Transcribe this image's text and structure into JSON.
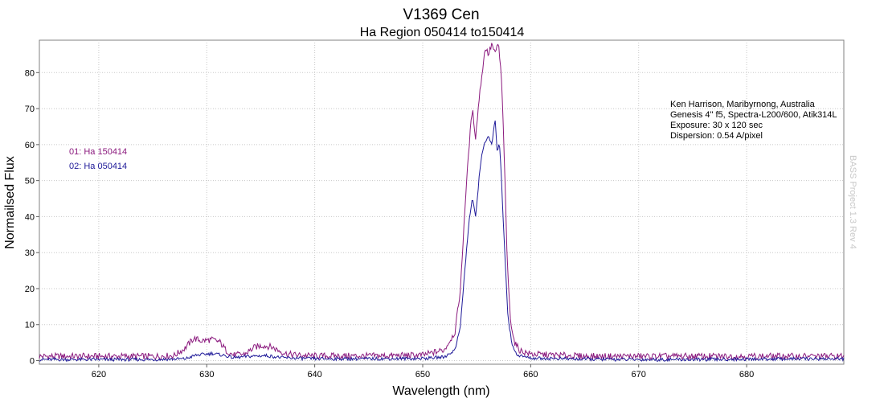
{
  "chart_data": {
    "type": "line",
    "title": "V1369 Cen",
    "subtitle": "Ha Region 050414 to150414",
    "xlabel": "Wavelength (nm)",
    "ylabel": "Normailsed Flux",
    "xlim": [
      614.5,
      689.0
    ],
    "ylim": [
      -1,
      89
    ],
    "xticks": [
      620,
      630,
      640,
      650,
      660,
      670,
      680
    ],
    "yticks": [
      0,
      10,
      20,
      30,
      40,
      50,
      60,
      70,
      80
    ],
    "grid": true,
    "legend_position": "left",
    "series": [
      {
        "name": "01: Ha 150414",
        "color": "#8b1a7e",
        "x": [
          614.5,
          620,
          625,
          627,
          628,
          628.8,
          629.5,
          630.5,
          631.2,
          631.8,
          632.5,
          633.5,
          634.5,
          635.2,
          636,
          636.8,
          637.5,
          638.5,
          640,
          645,
          650,
          652,
          653,
          653.5,
          653.9,
          654.3,
          654.6,
          654.9,
          655.2,
          655.5,
          655.8,
          656.1,
          656.4,
          656.7,
          657.0,
          657.3,
          657.5,
          657.8,
          658.1,
          658.5,
          659,
          660,
          665,
          670,
          675,
          680,
          685,
          689
        ],
        "y": [
          1.2,
          1.2,
          1.2,
          1.4,
          3.5,
          6.2,
          5.5,
          5.8,
          5.2,
          2.8,
          1.5,
          1.8,
          3.8,
          4.2,
          3.8,
          2.6,
          1.8,
          1.5,
          1.3,
          1.3,
          1.5,
          3.0,
          8.0,
          20.0,
          42.0,
          60.0,
          70.0,
          62.0,
          72.0,
          80.0,
          87.0,
          85.0,
          88.0,
          85.0,
          88.5,
          78.0,
          62.0,
          30.0,
          12.0,
          5.0,
          2.8,
          1.8,
          1.2,
          1.2,
          1.2,
          1.2,
          1.2,
          1.2
        ]
      },
      {
        "name": "02: Ha 050414",
        "color": "#1f1a99",
        "x": [
          614.5,
          620,
          625,
          628,
          629,
          630.5,
          631.5,
          632.5,
          634,
          635.5,
          637,
          640,
          645,
          650,
          652,
          653,
          653.5,
          653.9,
          654.3,
          654.6,
          654.9,
          655.2,
          655.5,
          655.8,
          656.1,
          656.4,
          656.7,
          656.9,
          657.1,
          657.3,
          657.6,
          657.9,
          658.3,
          658.8,
          660,
          665,
          670,
          675,
          680,
          685,
          689
        ],
        "y": [
          0.3,
          0.3,
          0.3,
          0.5,
          1.5,
          2.0,
          1.5,
          0.8,
          1.2,
          1.4,
          0.8,
          0.5,
          0.5,
          0.6,
          1.0,
          3.0,
          10.0,
          25.0,
          39.0,
          45.0,
          40.0,
          50.0,
          58.0,
          61.0,
          62.0,
          60.0,
          67.0,
          58.0,
          61.0,
          50.0,
          30.0,
          12.0,
          4.0,
          1.5,
          0.7,
          0.4,
          0.3,
          0.3,
          0.4,
          0.5,
          0.5
        ]
      }
    ]
  },
  "annotation_lines": [
    "Ken Harrison, Maribyrnong, Australia",
    "Genesis 4\" f5, Spectra-L200/600, Atik314L",
    "Exposure: 30 x 120 sec",
    "Dispersion: 0.54 A/pixel"
  ],
  "watermark": "BASS Project 1.3 Rev 4"
}
